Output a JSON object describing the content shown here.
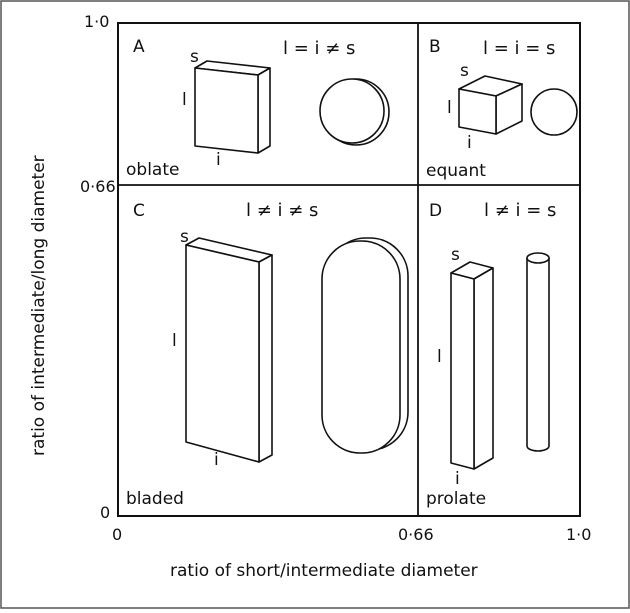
{
  "axes": {
    "x_label": "ratio of short/intermediate diameter",
    "y_label": "ratio of intermediate/long diameter",
    "x_ticks": [
      "0",
      "0·66",
      "1·0"
    ],
    "y_ticks": [
      "0",
      "0·66",
      "1·0"
    ]
  },
  "panels": {
    "A": {
      "letter": "A",
      "relation": "l = i ≠ s",
      "name": "oblate",
      "dims": {
        "s": "s",
        "l": "l",
        "i": "i"
      }
    },
    "B": {
      "letter": "B",
      "relation": "l = i = s",
      "name": "equant",
      "dims": {
        "s": "s",
        "l": "l",
        "i": "i"
      }
    },
    "C": {
      "letter": "C",
      "relation": "l ≠ i ≠ s",
      "name": "bladed",
      "dims": {
        "s": "s",
        "l": "l",
        "i": "i"
      }
    },
    "D": {
      "letter": "D",
      "relation": "l ≠ i = s",
      "name": "prolate",
      "dims": {
        "s": "s",
        "l": "l",
        "i": "i"
      }
    }
  }
}
